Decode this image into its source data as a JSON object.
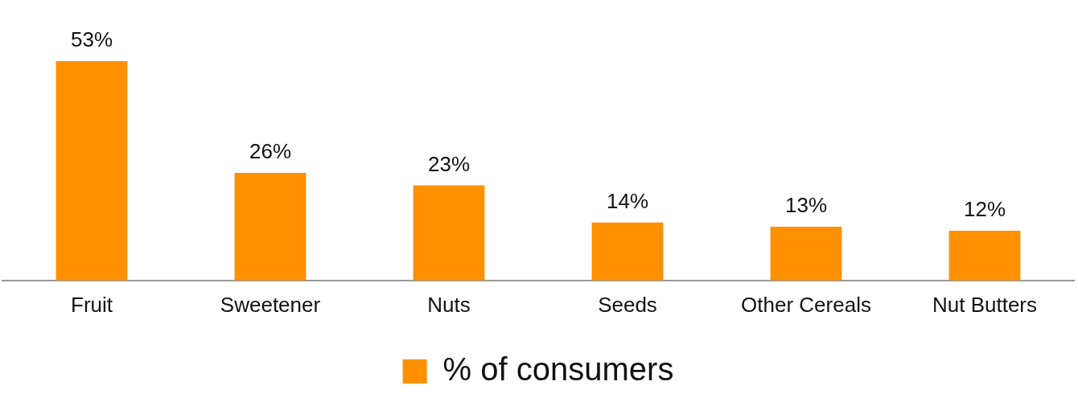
{
  "chart_data": {
    "type": "bar",
    "categories": [
      "Fruit",
      "Sweetener",
      "Nuts",
      "Seeds",
      "Other Cereals",
      "Nut Butters"
    ],
    "series": [
      {
        "name": "% of consumers",
        "color": "#ff9000",
        "values": [
          53,
          26,
          23,
          14,
          13,
          12
        ],
        "value_labels": [
          "53%",
          "26%",
          "23%",
          "14%",
          "13%",
          "12%"
        ]
      }
    ],
    "legend": "bottom",
    "grid": false
  }
}
